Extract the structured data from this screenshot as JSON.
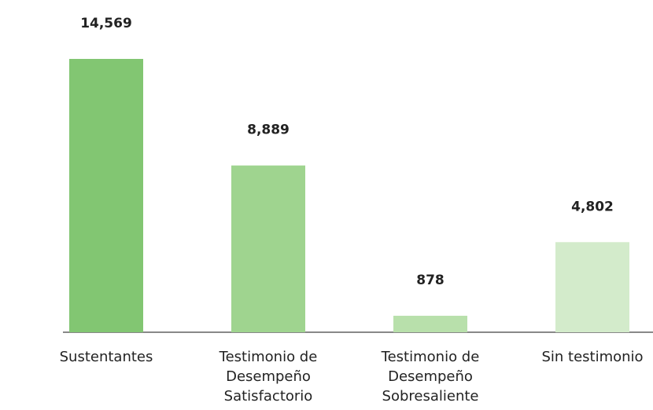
{
  "chart_data": {
    "type": "bar",
    "categories": [
      "Sustentantes",
      "Testimonio de\nDesempeño\nSatisfactorio",
      "Testimonio de\nDesempeño\nSobresaliente",
      "Sin testimonio"
    ],
    "values": [
      14569,
      8889,
      878,
      4802
    ],
    "value_labels": [
      "14,569",
      "8,889",
      "878",
      "4,802"
    ],
    "colors": [
      "#82c672",
      "#9fd48f",
      "#b8e0ab",
      "#d3ebcb"
    ]
  }
}
